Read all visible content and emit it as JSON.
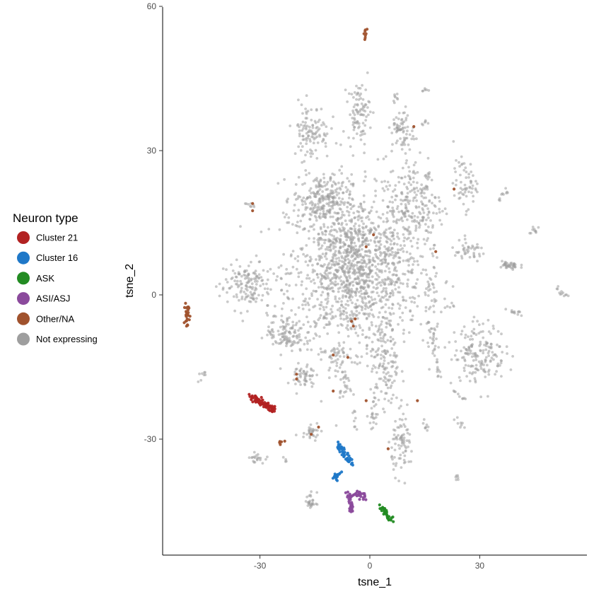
{
  "chart_data": {
    "type": "scatter",
    "xlabel": "tsne_1",
    "ylabel": "tsne_2",
    "xlim": [
      -57,
      60
    ],
    "ylim": [
      -54,
      60
    ],
    "x_ticks": [
      -30,
      0,
      30
    ],
    "y_ticks": [
      -30,
      0,
      30,
      60
    ],
    "grid": false,
    "legend": {
      "title": "Neuron type",
      "placement": "left",
      "entries": [
        {
          "label": "Cluster 21",
          "color": "#b22222"
        },
        {
          "label": "Cluster 16",
          "color": "#1f78c8"
        },
        {
          "label": "ASK",
          "color": "#228b22"
        },
        {
          "label": "ASI/ASJ",
          "color": "#8b4a9c"
        },
        {
          "label": "Other/NA",
          "color": "#a0522d"
        },
        {
          "label": "Not expressing",
          "color": "#9e9e9e"
        }
      ]
    },
    "clusters": [
      {
        "group": "Not expressing",
        "center": [
          -4,
          5
        ],
        "sd": [
          9,
          8
        ],
        "n": 1400
      },
      {
        "group": "Not expressing",
        "center": [
          -13,
          20
        ],
        "sd": [
          4,
          2.5
        ],
        "n": 220
      },
      {
        "group": "Not expressing",
        "center": [
          12,
          19
        ],
        "sd": [
          4,
          5
        ],
        "n": 200
      },
      {
        "group": "Not expressing",
        "center": [
          -16,
          34
        ],
        "sd": [
          2.5,
          3
        ],
        "n": 110
      },
      {
        "group": "Not expressing",
        "center": [
          -3,
          38
        ],
        "sd": [
          1.5,
          3
        ],
        "n": 90
      },
      {
        "group": "Not expressing",
        "center": [
          9,
          34
        ],
        "sd": [
          1.5,
          2.5
        ],
        "n": 60
      },
      {
        "group": "Not expressing",
        "center": [
          26,
          23
        ],
        "sd": [
          1.6,
          2.5
        ],
        "n": 60
      },
      {
        "group": "Not expressing",
        "center": [
          -34,
          2
        ],
        "sd": [
          3.5,
          2.5
        ],
        "n": 140
      },
      {
        "group": "Not expressing",
        "center": [
          -23,
          -8
        ],
        "sd": [
          2.5,
          2
        ],
        "n": 110
      },
      {
        "group": "Not expressing",
        "center": [
          30,
          -12
        ],
        "sd": [
          3.5,
          3
        ],
        "n": 170
      },
      {
        "group": "Not expressing",
        "center": [
          -9,
          -13
        ],
        "sd": [
          1.5,
          2
        ],
        "n": 40
      },
      {
        "group": "Not expressing",
        "center": [
          4,
          -15
        ],
        "sd": [
          2,
          5
        ],
        "n": 120
      },
      {
        "group": "Not expressing",
        "center": [
          -18,
          -17
        ],
        "sd": [
          1.5,
          1.5
        ],
        "n": 50
      },
      {
        "group": "Not expressing",
        "center": [
          9,
          -31
        ],
        "sd": [
          1.5,
          3
        ],
        "n": 80
      },
      {
        "group": "Not expressing",
        "center": [
          27,
          9
        ],
        "sd": [
          2.5,
          1
        ],
        "n": 40
      },
      {
        "group": "Not expressing",
        "center": [
          38,
          6
        ],
        "sd": [
          1.5,
          0.5
        ],
        "n": 40
      },
      {
        "group": "Not expressing",
        "center": [
          17,
          0
        ],
        "sd": [
          1,
          4
        ],
        "n": 30
      },
      {
        "group": "Not expressing",
        "center": [
          17,
          -9
        ],
        "sd": [
          1,
          1.5
        ],
        "n": 25
      },
      {
        "group": "Not expressing",
        "center": [
          -16,
          -28
        ],
        "sd": [
          1.5,
          1
        ],
        "n": 30
      },
      {
        "group": "Not expressing",
        "center": [
          -31,
          -34
        ],
        "sd": [
          1,
          0.5
        ],
        "n": 20
      },
      {
        "group": "Not expressing",
        "center": [
          -7,
          -19
        ],
        "sd": [
          0.8,
          1
        ],
        "n": 20
      },
      {
        "group": "Not expressing",
        "center": [
          1,
          -25
        ],
        "sd": [
          0.6,
          1.5
        ],
        "n": 20
      },
      {
        "group": "Not expressing",
        "center": [
          -16,
          -43
        ],
        "sd": [
          0.8,
          1
        ],
        "n": 20
      }
    ],
    "segments": [
      {
        "group": "Not expressing",
        "from": [
          6.5,
          36
        ],
        "to": [
          8,
          34
        ],
        "n": 12
      },
      {
        "group": "Not expressing",
        "from": [
          7,
          42
        ],
        "to": [
          7,
          40
        ],
        "n": 8
      },
      {
        "group": "Not expressing",
        "from": [
          14.5,
          42.5
        ],
        "to": [
          15.5,
          42.5
        ],
        "n": 6
      },
      {
        "group": "Not expressing",
        "from": [
          14,
          35.5
        ],
        "to": [
          16,
          36
        ],
        "n": 6
      },
      {
        "group": "Not expressing",
        "from": [
          15,
          22
        ],
        "to": [
          16,
          25
        ],
        "n": 10
      },
      {
        "group": "Not expressing",
        "from": [
          35,
          20
        ],
        "to": [
          38,
          22
        ],
        "n": 10
      },
      {
        "group": "Not expressing",
        "from": [
          43,
          13
        ],
        "to": [
          46,
          13.5
        ],
        "n": 10
      },
      {
        "group": "Not expressing",
        "from": [
          51,
          1.5
        ],
        "to": [
          54,
          -0.5
        ],
        "n": 12
      },
      {
        "group": "Not expressing",
        "from": [
          37,
          -3
        ],
        "to": [
          41,
          -4
        ],
        "n": 12
      },
      {
        "group": "Not expressing",
        "from": [
          21,
          -3
        ],
        "to": [
          23,
          -2
        ],
        "n": 6
      },
      {
        "group": "Not expressing",
        "from": [
          18,
          -13
        ],
        "to": [
          19,
          -18
        ],
        "n": 12
      },
      {
        "group": "Not expressing",
        "from": [
          22,
          -19
        ],
        "to": [
          26,
          -22
        ],
        "n": 10
      },
      {
        "group": "Not expressing",
        "from": [
          24,
          -26
        ],
        "to": [
          26,
          -28
        ],
        "n": 8
      },
      {
        "group": "Not expressing",
        "from": [
          23,
          -38
        ],
        "to": [
          24,
          -38
        ],
        "n": 6
      },
      {
        "group": "Not expressing",
        "from": [
          -47,
          -18
        ],
        "to": [
          -45,
          -16
        ],
        "n": 8
      },
      {
        "group": "Not expressing",
        "from": [
          -34,
          19
        ],
        "to": [
          -32,
          18
        ],
        "n": 8
      },
      {
        "group": "Not expressing",
        "from": [
          -17,
          -45
        ],
        "to": [
          -16,
          -43
        ],
        "n": 8
      },
      {
        "group": "Not expressing",
        "from": [
          -23,
          -34
        ],
        "to": [
          -23,
          -35
        ],
        "n": 4
      },
      {
        "group": "Not expressing",
        "from": [
          -8,
          5
        ],
        "to": [
          -3,
          15
        ],
        "n": 20
      },
      {
        "group": "Not expressing",
        "from": [
          14,
          -26
        ],
        "to": [
          16,
          -28
        ],
        "n": 8
      },
      {
        "group": "Not expressing",
        "from": [
          -4,
          -24
        ],
        "to": [
          -4,
          -28
        ],
        "n": 8
      },
      {
        "group": "Other/NA",
        "from": [
          -1,
          53.5
        ],
        "to": [
          -1,
          55.5
        ],
        "n": 8
      },
      {
        "group": "Other/NA",
        "from": [
          -25,
          -31
        ],
        "to": [
          -24,
          -29.5
        ],
        "n": 6
      },
      {
        "group": "Other/NA",
        "from": [
          -50,
          -7
        ],
        "to": [
          -50,
          -2
        ],
        "n": 26
      },
      {
        "group": "Cluster 21",
        "from": [
          -33,
          -21
        ],
        "to": [
          -26,
          -24
        ],
        "n": 80
      },
      {
        "group": "Cluster 16",
        "from": [
          -9,
          -31
        ],
        "to": [
          -5,
          -35
        ],
        "n": 45
      },
      {
        "group": "Cluster 16",
        "from": [
          -10,
          -38
        ],
        "to": [
          -8,
          -37
        ],
        "n": 18
      },
      {
        "group": "ASI/ASJ",
        "from": [
          -5,
          -45
        ],
        "to": [
          -6,
          -41
        ],
        "n": 30
      },
      {
        "group": "ASI/ASJ",
        "from": [
          -5,
          -41
        ],
        "to": [
          -1,
          -42
        ],
        "n": 25
      },
      {
        "group": "ASK",
        "from": [
          3,
          -44
        ],
        "to": [
          6,
          -47
        ],
        "n": 30
      }
    ],
    "scattered_points": [
      {
        "group": "Other/NA",
        "x": -32,
        "y": 19
      },
      {
        "group": "Other/NA",
        "x": -32,
        "y": 17.5
      },
      {
        "group": "Other/NA",
        "x": 1,
        "y": 12.5
      },
      {
        "group": "Other/NA",
        "x": -1,
        "y": 10
      },
      {
        "group": "Other/NA",
        "x": 18,
        "y": 9
      },
      {
        "group": "Other/NA",
        "x": 12,
        "y": 35
      },
      {
        "group": "Other/NA",
        "x": 23,
        "y": 22
      },
      {
        "group": "Other/NA",
        "x": -5,
        "y": -5.5
      },
      {
        "group": "Other/NA",
        "x": -4.5,
        "y": -6.5
      },
      {
        "group": "Other/NA",
        "x": -4,
        "y": -5
      },
      {
        "group": "Other/NA",
        "x": -10,
        "y": -12.5
      },
      {
        "group": "Other/NA",
        "x": -6,
        "y": -13
      },
      {
        "group": "Other/NA",
        "x": -20,
        "y": -16.5
      },
      {
        "group": "Other/NA",
        "x": -20,
        "y": -17.5
      },
      {
        "group": "Other/NA",
        "x": -10,
        "y": -20
      },
      {
        "group": "Other/NA",
        "x": -1,
        "y": -22
      },
      {
        "group": "Other/NA",
        "x": 13,
        "y": -22
      },
      {
        "group": "Other/NA",
        "x": -14,
        "y": -27.5
      },
      {
        "group": "Other/NA",
        "x": -16,
        "y": -29
      },
      {
        "group": "Other/NA",
        "x": 5,
        "y": -32
      }
    ]
  }
}
